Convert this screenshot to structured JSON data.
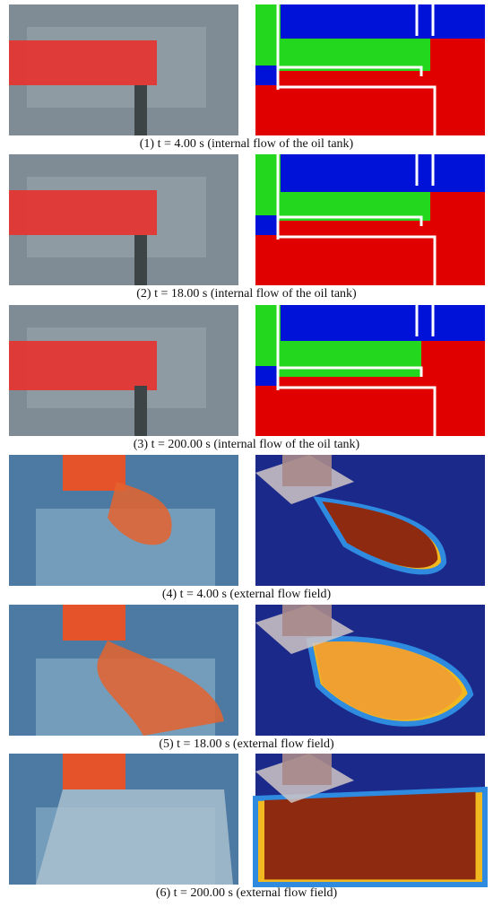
{
  "panels": [
    {
      "caption": "(1) t = 4.00 s (internal flow of the oil tank)"
    },
    {
      "caption": "(2) t = 18.00 s (internal flow of the oil tank)"
    },
    {
      "caption": "(3) t = 200.00 s (internal flow of the oil tank)"
    },
    {
      "caption": "(4) t = 4.00 s (external flow field)"
    },
    {
      "caption": "(5) t = 18.00 s (external flow field)"
    },
    {
      "caption": "(6) t = 200.00 s (external flow field)"
    }
  ]
}
